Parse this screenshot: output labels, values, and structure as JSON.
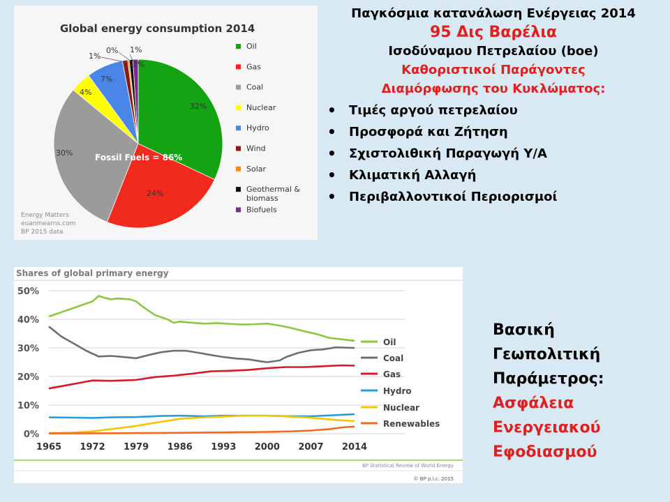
{
  "slide": {
    "title_line1": "Παγκόσμια κατανάλωση Ενέργειας 2014",
    "title_line2": "95 Δις Βαρέλια",
    "title_line3": "Ισοδύναμου Πετρελαίου (boe)",
    "subtitle_line1": "Καθοριστικοί Παράγοντες",
    "subtitle_line2": "Διαμόρφωσης του Κυκλώματος:",
    "bullets": [
      "Τιμές αργού πετρελαίου",
      "Προσφορά και Ζήτηση",
      "Σχιστολιθική Παραγωγή Υ/Α",
      "Κλιματική Αλλαγή",
      "Περιβαλλοντικοί Περιορισμοί"
    ],
    "bottom_text": [
      "Βασική",
      "Γεωπολιτική",
      "Παράμετρος:"
    ],
    "bottom_text_red": [
      "Ασφάλεια",
      "Ενεργειακού",
      "Εφοδιασμού"
    ],
    "colors": {
      "accent_red": "#e02020",
      "background": "#d9e9f3"
    }
  },
  "chart_data": [
    {
      "type": "pie",
      "title": "Global energy consumption 2014",
      "annotation": "Fossil Fuels = 86%",
      "source_lines": [
        "Energy Matters",
        "euanmearns.com",
        "BP 2015 data"
      ],
      "slices": [
        {
          "label": "Oil",
          "value": 32,
          "display": "32%",
          "color": "#13a313"
        },
        {
          "label": "Gas",
          "value": 24,
          "display": "24%",
          "color": "#f02a1c"
        },
        {
          "label": "Coal",
          "value": 30,
          "display": "30%",
          "color": "#9b9b9b"
        },
        {
          "label": "Nuclear",
          "value": 4,
          "display": "4%",
          "color": "#ffff00"
        },
        {
          "label": "Hydro",
          "value": 7,
          "display": "7%",
          "color": "#4a86e8"
        },
        {
          "label": "Wind",
          "value": 1,
          "display": "1%",
          "color": "#8b1a12"
        },
        {
          "label": "Solar",
          "value": 0.3,
          "display": "0%",
          "color": "#f58a1f"
        },
        {
          "label": "Geothermal & biomass",
          "value": 0.7,
          "display": "1%",
          "color": "#111111"
        },
        {
          "label": "Biofuels",
          "value": 1,
          "display": "1%",
          "color": "#7d2a8f"
        }
      ],
      "legend": [
        {
          "label": "Oil",
          "color": "#13a313"
        },
        {
          "label": "Gas",
          "color": "#f02a1c"
        },
        {
          "label": "Coal",
          "color": "#9b9b9b"
        },
        {
          "label": "Nuclear",
          "color": "#ffff00"
        },
        {
          "label": "Hydro",
          "color": "#4a86e8"
        },
        {
          "label": "Wind",
          "color": "#8b1a12"
        },
        {
          "label": "Solar",
          "color": "#f58a1f"
        },
        {
          "label": "Geothermal & biomass",
          "color": "#111111"
        },
        {
          "label": "Biofuels",
          "color": "#7d2a8f"
        }
      ]
    },
    {
      "type": "line",
      "title": "Shares of global primary energy",
      "source": "BP Statistical Review of World Energy",
      "copyright": "© BP p.l.c. 2015",
      "x_ticks": [
        1965,
        1972,
        1979,
        1986,
        1993,
        2000,
        2007,
        2014
      ],
      "y_ticks": [
        0,
        10,
        20,
        30,
        40,
        50
      ],
      "y_tick_labels": [
        "0%",
        "10%",
        "20%",
        "30%",
        "40%",
        "50%"
      ],
      "xlim": [
        1965,
        2014
      ],
      "ylim": [
        0,
        50
      ],
      "grid": true,
      "series": [
        {
          "name": "Oil",
          "color": "#8dc63f",
          "points": [
            [
              1965,
              41
            ],
            [
              1967,
              42.5
            ],
            [
              1969,
              44
            ],
            [
              1971,
              45.5
            ],
            [
              1972,
              46.3
            ],
            [
              1973,
              48.2
            ],
            [
              1974,
              47.5
            ],
            [
              1975,
              47
            ],
            [
              1976,
              47.3
            ],
            [
              1978,
              47
            ],
            [
              1979,
              46.3
            ],
            [
              1980,
              44.5
            ],
            [
              1982,
              41.5
            ],
            [
              1984,
              40
            ],
            [
              1985,
              38.8
            ],
            [
              1986,
              39.2
            ],
            [
              1988,
              38.8
            ],
            [
              1990,
              38.5
            ],
            [
              1992,
              38.7
            ],
            [
              1994,
              38.4
            ],
            [
              1996,
              38.2
            ],
            [
              1998,
              38.3
            ],
            [
              2000,
              38.5
            ],
            [
              2002,
              37.8
            ],
            [
              2004,
              36.9
            ],
            [
              2006,
              35.8
            ],
            [
              2008,
              34.8
            ],
            [
              2010,
              33.5
            ],
            [
              2012,
              33
            ],
            [
              2014,
              32.5
            ]
          ]
        },
        {
          "name": "Coal",
          "color": "#6e6e6e",
          "points": [
            [
              1965,
              37.5
            ],
            [
              1967,
              34
            ],
            [
              1969,
              31.5
            ],
            [
              1971,
              29
            ],
            [
              1973,
              27
            ],
            [
              1975,
              27.2
            ],
            [
              1977,
              26.8
            ],
            [
              1979,
              26.4
            ],
            [
              1981,
              27.5
            ],
            [
              1983,
              28.5
            ],
            [
              1985,
              29
            ],
            [
              1987,
              29
            ],
            [
              1989,
              28.3
            ],
            [
              1991,
              27.5
            ],
            [
              1993,
              26.8
            ],
            [
              1995,
              26.3
            ],
            [
              1997,
              26
            ],
            [
              1999,
              25.3
            ],
            [
              2000,
              25
            ],
            [
              2002,
              25.6
            ],
            [
              2003,
              26.8
            ],
            [
              2005,
              28.3
            ],
            [
              2007,
              29.2
            ],
            [
              2009,
              29.5
            ],
            [
              2011,
              30.2
            ],
            [
              2014,
              30
            ]
          ]
        },
        {
          "name": "Gas",
          "color": "#d7192b",
          "points": [
            [
              1965,
              15.8
            ],
            [
              1968,
              17
            ],
            [
              1971,
              18.2
            ],
            [
              1972,
              18.6
            ],
            [
              1975,
              18.5
            ],
            [
              1979,
              18.8
            ],
            [
              1982,
              19.8
            ],
            [
              1985,
              20.3
            ],
            [
              1988,
              21
            ],
            [
              1991,
              21.8
            ],
            [
              1994,
              22
            ],
            [
              1997,
              22.3
            ],
            [
              2000,
              22.9
            ],
            [
              2003,
              23.3
            ],
            [
              2006,
              23.3
            ],
            [
              2008,
              23.5
            ],
            [
              2010,
              23.7
            ],
            [
              2012,
              23.9
            ],
            [
              2014,
              23.8
            ]
          ]
        },
        {
          "name": "Hydro",
          "color": "#23a0d8",
          "points": [
            [
              1965,
              5.7
            ],
            [
              1969,
              5.6
            ],
            [
              1972,
              5.5
            ],
            [
              1975,
              5.7
            ],
            [
              1979,
              5.8
            ],
            [
              1983,
              6.2
            ],
            [
              1986,
              6.3
            ],
            [
              1990,
              6.1
            ],
            [
              1993,
              6.3
            ],
            [
              1997,
              6.3
            ],
            [
              2000,
              6.3
            ],
            [
              2004,
              6.1
            ],
            [
              2007,
              6.1
            ],
            [
              2010,
              6.4
            ],
            [
              2014,
              6.8
            ]
          ]
        },
        {
          "name": "Nuclear",
          "color": "#f5c400",
          "points": [
            [
              1965,
              0.2
            ],
            [
              1969,
              0.4
            ],
            [
              1972,
              0.8
            ],
            [
              1975,
              1.6
            ],
            [
              1979,
              2.7
            ],
            [
              1982,
              3.8
            ],
            [
              1986,
              5.2
            ],
            [
              1989,
              5.6
            ],
            [
              1993,
              6
            ],
            [
              1996,
              6.3
            ],
            [
              2000,
              6.3
            ],
            [
              2002,
              6.2
            ],
            [
              2004,
              5.9
            ],
            [
              2006,
              5.7
            ],
            [
              2008,
              5.4
            ],
            [
              2011,
              4.8
            ],
            [
              2014,
              4.4
            ]
          ]
        },
        {
          "name": "Renewables",
          "color": "#ef6a23",
          "points": [
            [
              1965,
              0.1
            ],
            [
              1975,
              0.15
            ],
            [
              1985,
              0.3
            ],
            [
              1995,
              0.5
            ],
            [
              2000,
              0.6
            ],
            [
              2004,
              0.8
            ],
            [
              2007,
              1.1
            ],
            [
              2010,
              1.6
            ],
            [
              2012,
              2.2
            ],
            [
              2014,
              2.5
            ]
          ]
        }
      ]
    }
  ]
}
